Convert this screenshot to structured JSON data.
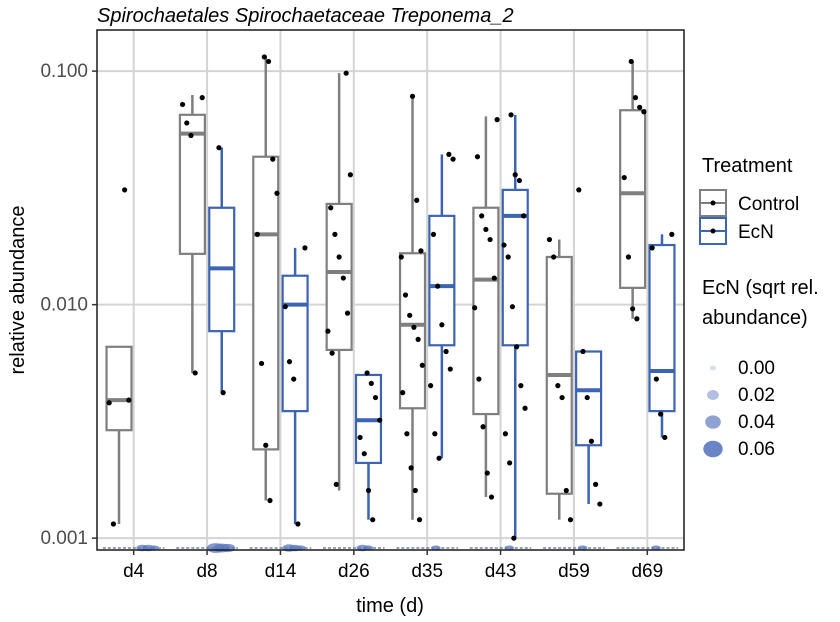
{
  "chart_data": {
    "type": "box",
    "title": "Spirochaetales Spirochaetaceae Treponema_2",
    "xlabel": "time (d)",
    "ylabel": "relative abundance",
    "y_scale": "log10",
    "ylim": [
      0.00089,
      0.15
    ],
    "y_ticks": [
      {
        "value": 0.001,
        "label": "0.001"
      },
      {
        "value": 0.01,
        "label": "0.010"
      },
      {
        "value": 0.1,
        "label": "0.100"
      }
    ],
    "grid": true,
    "categories": [
      "d4",
      "d8",
      "d14",
      "d26",
      "d35",
      "d43",
      "d59",
      "d69"
    ],
    "legend": {
      "position": "right",
      "treatment_title": "Treatment",
      "size_title_lines": [
        "EcN (sqrt rel.",
        "abundance)"
      ],
      "size_levels": [
        {
          "label": "0.00",
          "value": 0.0
        },
        {
          "label": "0.02",
          "value": 0.02
        },
        {
          "label": "0.04",
          "value": 0.04
        },
        {
          "label": "0.06",
          "value": 0.06
        }
      ]
    },
    "series": [
      {
        "name": "Control",
        "color": "#7f7f7f",
        "boxes": [
          {
            "category": "d4",
            "min": 0.00115,
            "q1": 0.0029,
            "median": 0.0039,
            "q3": 0.0066,
            "max": 0.0066
          },
          {
            "category": "d8",
            "min": 0.0051,
            "q1": 0.0165,
            "median": 0.054,
            "q3": 0.065,
            "max": 0.079
          },
          {
            "category": "d14",
            "min": 0.00145,
            "q1": 0.0024,
            "median": 0.02,
            "q3": 0.043,
            "max": 0.115
          },
          {
            "category": "d26",
            "min": 0.0016,
            "q1": 0.0064,
            "median": 0.0138,
            "q3": 0.027,
            "max": 0.098
          },
          {
            "category": "d35",
            "min": 0.0012,
            "q1": 0.0036,
            "median": 0.0082,
            "q3": 0.0166,
            "max": 0.078
          },
          {
            "category": "d43",
            "min": 0.0015,
            "q1": 0.0034,
            "median": 0.0128,
            "q3": 0.026,
            "max": 0.064
          },
          {
            "category": "d59",
            "min": 0.0012,
            "q1": 0.00155,
            "median": 0.005,
            "q3": 0.016,
            "max": 0.019
          },
          {
            "category": "d69",
            "min": 0.0087,
            "q1": 0.0118,
            "median": 0.03,
            "q3": 0.068,
            "max": 0.11
          }
        ],
        "points": [
          {
            "category": "d4",
            "values": [
              0.031,
              0.0039,
              0.0038,
              0.00115
            ]
          },
          {
            "category": "d8",
            "values": [
              0.077,
              0.072,
              0.06,
              0.053,
              0.0051
            ]
          },
          {
            "category": "d14",
            "values": [
              0.115,
              0.11,
              0.042,
              0.03,
              0.02,
              0.0056,
              0.0025,
              0.00145
            ]
          },
          {
            "category": "d26",
            "values": [
              0.098,
              0.036,
              0.026,
              0.02,
              0.016,
              0.013,
              0.0092,
              0.0077,
              0.0062,
              0.0017
            ]
          },
          {
            "category": "d35",
            "values": [
              0.078,
              0.028,
              0.017,
              0.016,
              0.011,
              0.009,
              0.008,
              0.0071,
              0.0055,
              0.0042,
              0.0028,
              0.002,
              0.0016,
              0.0012
            ]
          },
          {
            "category": "d43",
            "values": [
              0.062,
              0.043,
              0.024,
              0.021,
              0.019,
              0.013,
              0.0097,
              0.0048,
              0.003,
              0.0019,
              0.0015
            ]
          },
          {
            "category": "d59",
            "values": [
              0.019,
              0.016,
              0.0045,
              0.004,
              0.0016,
              0.0012
            ]
          },
          {
            "category": "d69",
            "values": [
              0.11,
              0.077,
              0.07,
              0.067,
              0.035,
              0.016,
              0.0096,
              0.0087
            ]
          }
        ]
      },
      {
        "name": "EcN",
        "color": "#3c64b1",
        "boxes": [
          {
            "category": "d8",
            "min": 0.0042,
            "q1": 0.0077,
            "median": 0.0143,
            "q3": 0.026,
            "max": 0.047
          },
          {
            "category": "d14",
            "min": 0.00115,
            "q1": 0.0035,
            "median": 0.01,
            "q3": 0.0133,
            "max": 0.0175
          },
          {
            "category": "d26",
            "min": 0.0012,
            "q1": 0.0021,
            "median": 0.0032,
            "q3": 0.005,
            "max": 0.005
          },
          {
            "category": "d35",
            "min": 0.0022,
            "q1": 0.0067,
            "median": 0.012,
            "q3": 0.024,
            "max": 0.044
          },
          {
            "category": "d43",
            "min": 0.001,
            "q1": 0.0067,
            "median": 0.024,
            "q3": 0.031,
            "max": 0.065
          },
          {
            "category": "d59",
            "min": 0.0014,
            "q1": 0.0025,
            "median": 0.0043,
            "q3": 0.0063,
            "max": 0.0063
          },
          {
            "category": "d69",
            "min": 0.0027,
            "q1": 0.0035,
            "median": 0.0052,
            "q3": 0.018,
            "max": 0.02
          }
        ],
        "points": [
          {
            "category": "d8",
            "values": [
              0.047,
              0.0042
            ]
          },
          {
            "category": "d14",
            "values": [
              0.0175,
              0.0098,
              0.0057,
              0.0048,
              0.00115
            ]
          },
          {
            "category": "d26",
            "values": [
              0.0051,
              0.0046,
              0.004,
              0.0032,
              0.0027,
              0.0023,
              0.0016,
              0.0012
            ]
          },
          {
            "category": "d35",
            "values": [
              0.044,
              0.042,
              0.02,
              0.012,
              0.0082,
              0.0063,
              0.0053,
              0.0045,
              0.0028,
              0.0022
            ]
          },
          {
            "category": "d43",
            "values": [
              0.065,
              0.036,
              0.034,
              0.024,
              0.018,
              0.016,
              0.0098,
              0.0066,
              0.0045,
              0.0036,
              0.0028,
              0.0021,
              0.001
            ]
          },
          {
            "category": "d59",
            "values": [
              0.031,
              0.0063,
              0.004,
              0.0026,
              0.0017,
              0.0014
            ]
          },
          {
            "category": "d69",
            "values": [
              0.02,
              0.0175,
              0.0048,
              0.0034,
              0.0027
            ]
          }
        ],
        "bottom_marks": [
          {
            "category": "d4",
            "sizes": [
              0.02,
              0.02,
              0.01
            ]
          },
          {
            "category": "d8",
            "sizes": [
              0.06,
              0.05,
              0.04
            ]
          },
          {
            "category": "d14",
            "sizes": [
              0.03,
              0.02,
              0.01
            ]
          },
          {
            "category": "d26",
            "sizes": [
              0.02,
              0.01
            ]
          },
          {
            "category": "d35",
            "sizes": [
              0.01
            ]
          },
          {
            "category": "d43",
            "sizes": [
              0.01
            ]
          },
          {
            "category": "d59",
            "sizes": [
              0.01
            ]
          },
          {
            "category": "d69",
            "sizes": [
              0.01
            ]
          }
        ]
      }
    ]
  }
}
